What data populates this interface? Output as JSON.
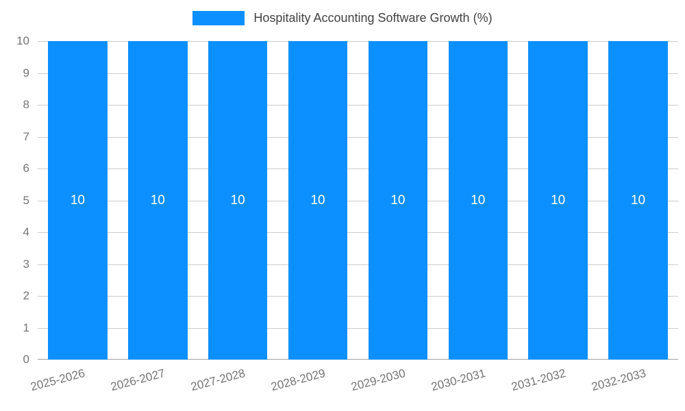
{
  "chart_data": {
    "type": "bar",
    "title": "Hospitality Accounting Software Growth (%)",
    "categories": [
      "2025-2026",
      "2026-2027",
      "2027-2028",
      "2028-2029",
      "2029-2030",
      "2030-2031",
      "2031-2032",
      "2032-2033"
    ],
    "series": [
      {
        "name": "Hospitality Accounting Software Growth (%)",
        "values": [
          10,
          10,
          10,
          10,
          10,
          10,
          10,
          10
        ]
      }
    ],
    "value_labels": [
      "10",
      "10",
      "10",
      "10",
      "10",
      "10",
      "10",
      "10"
    ],
    "xlabel": "",
    "ylabel": "",
    "ylim": [
      0,
      10
    ],
    "yticks": [
      0,
      1,
      2,
      3,
      4,
      5,
      6,
      7,
      8,
      9,
      10
    ],
    "grid": true,
    "legend_position": "top"
  },
  "colors": {
    "bar": "#0d90ff",
    "grid": "#cccccc",
    "baseline": "#9e9e9e",
    "axis_text": "#757575",
    "title_text": "#424242",
    "value_label": "#ffffff",
    "background": "#ffffff"
  }
}
